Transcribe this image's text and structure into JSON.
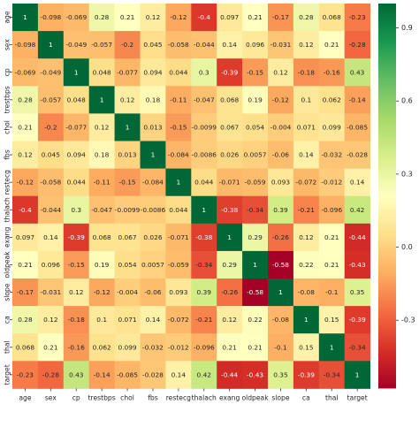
{
  "chart_data": {
    "type": "heatmap",
    "variables": [
      "age",
      "sex",
      "cp",
      "trestbps",
      "chol",
      "fbs",
      "restecg",
      "thalach",
      "exang",
      "oldpeak",
      "slope",
      "ca",
      "thal",
      "target"
    ],
    "values": [
      [
        1,
        -0.098,
        -0.069,
        0.28,
        0.21,
        0.12,
        -0.12,
        -0.4,
        0.097,
        0.21,
        -0.17,
        0.28,
        0.068,
        -0.23
      ],
      [
        -0.098,
        1,
        -0.049,
        -0.057,
        -0.2,
        0.045,
        -0.058,
        -0.044,
        0.14,
        0.096,
        -0.031,
        0.12,
        0.21,
        -0.28
      ],
      [
        -0.069,
        -0.049,
        1,
        0.048,
        -0.077,
        0.094,
        0.044,
        0.3,
        -0.39,
        -0.15,
        0.12,
        -0.18,
        -0.16,
        0.43
      ],
      [
        0.28,
        -0.057,
        0.048,
        1,
        0.12,
        0.18,
        -0.11,
        -0.047,
        0.068,
        0.19,
        -0.12,
        0.1,
        0.062,
        -0.14
      ],
      [
        0.21,
        -0.2,
        -0.077,
        0.12,
        1,
        0.013,
        -0.15,
        -0.0099,
        0.067,
        0.054,
        -0.004,
        0.071,
        0.099,
        -0.085
      ],
      [
        0.12,
        0.045,
        0.094,
        0.18,
        0.013,
        1,
        -0.084,
        -0.0086,
        0.026,
        0.0057,
        -0.06,
        0.14,
        -0.032,
        -0.028
      ],
      [
        -0.12,
        -0.058,
        0.044,
        -0.11,
        -0.15,
        -0.084,
        1,
        0.044,
        -0.071,
        -0.059,
        0.093,
        -0.072,
        -0.012,
        0.14
      ],
      [
        -0.4,
        -0.044,
        0.3,
        -0.047,
        -0.0099,
        -0.0086,
        0.044,
        1,
        -0.38,
        -0.34,
        0.39,
        -0.21,
        -0.096,
        0.42
      ],
      [
        0.097,
        0.14,
        -0.39,
        0.068,
        0.067,
        0.026,
        -0.071,
        -0.38,
        1,
        0.29,
        -0.26,
        0.12,
        0.21,
        -0.44
      ],
      [
        0.21,
        0.096,
        -0.15,
        0.19,
        0.054,
        0.0057,
        -0.059,
        -0.34,
        0.29,
        1,
        -0.58,
        0.22,
        0.21,
        -0.43
      ],
      [
        -0.17,
        -0.031,
        0.12,
        -0.12,
        -0.004,
        -0.06,
        0.093,
        0.39,
        -0.26,
        -0.58,
        1,
        -0.08,
        -0.1,
        0.35
      ],
      [
        0.28,
        0.12,
        -0.18,
        0.1,
        0.071,
        0.14,
        -0.072,
        -0.21,
        0.12,
        0.22,
        -0.08,
        1,
        0.15,
        -0.39
      ],
      [
        0.068,
        0.21,
        -0.16,
        0.062,
        0.099,
        -0.032,
        -0.012,
        -0.096,
        0.21,
        0.21,
        -0.1,
        0.15,
        1,
        -0.34
      ],
      [
        -0.23,
        -0.28,
        0.43,
        -0.14,
        -0.085,
        -0.028,
        0.14,
        0.42,
        -0.44,
        -0.43,
        0.35,
        -0.39,
        -0.34,
        1
      ]
    ],
    "colormap": "RdYlGn",
    "vmin": -0.58,
    "vmax": 1,
    "colorbar_ticks": [
      "0.9",
      "0.6",
      "0.3",
      "0.0",
      "-0.3"
    ],
    "colorbar_tick_values": [
      0.9,
      0.6,
      0.3,
      0.0,
      -0.3
    ],
    "cell_text_color_dark": "#262626",
    "cell_text_color_light": "#ffffff",
    "grid": false,
    "legend": "colorbar-right"
  }
}
